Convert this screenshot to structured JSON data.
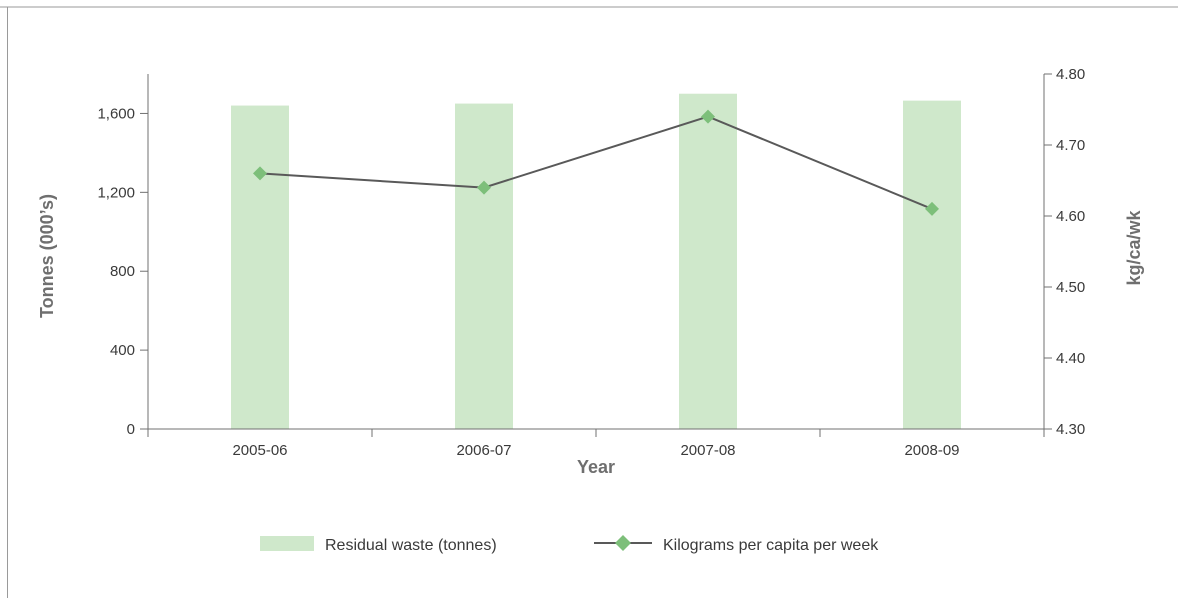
{
  "chart_data": {
    "type": "bar",
    "categories": [
      "2005-06",
      "2006-07",
      "2007-08",
      "2008-09"
    ],
    "xlabel": "Year",
    "ylabel": "Tonnes (000’s)",
    "y2label": "kg/ca/wk",
    "ylim": [
      0,
      1800
    ],
    "y2lim": [
      4.3,
      4.8
    ],
    "yticks": [
      "0",
      "400",
      "800",
      "1,200",
      "1,600"
    ],
    "y2ticks": [
      "4.30",
      "4.40",
      "4.50",
      "4.60",
      "4.70",
      "4.80"
    ],
    "grid": false,
    "legend_position": "bottom",
    "series": [
      {
        "name": "Residual waste (tonnes)",
        "type": "bar",
        "axis": "left",
        "color": "#cfe8cb",
        "values": [
          1640,
          1650,
          1700,
          1665
        ]
      },
      {
        "name": "Kilograms per capita per week",
        "type": "line",
        "axis": "right",
        "color": "#595959",
        "marker": "diamond",
        "marker_color": "#7dbf7a",
        "values": [
          4.66,
          4.64,
          4.74,
          4.61
        ]
      }
    ]
  }
}
